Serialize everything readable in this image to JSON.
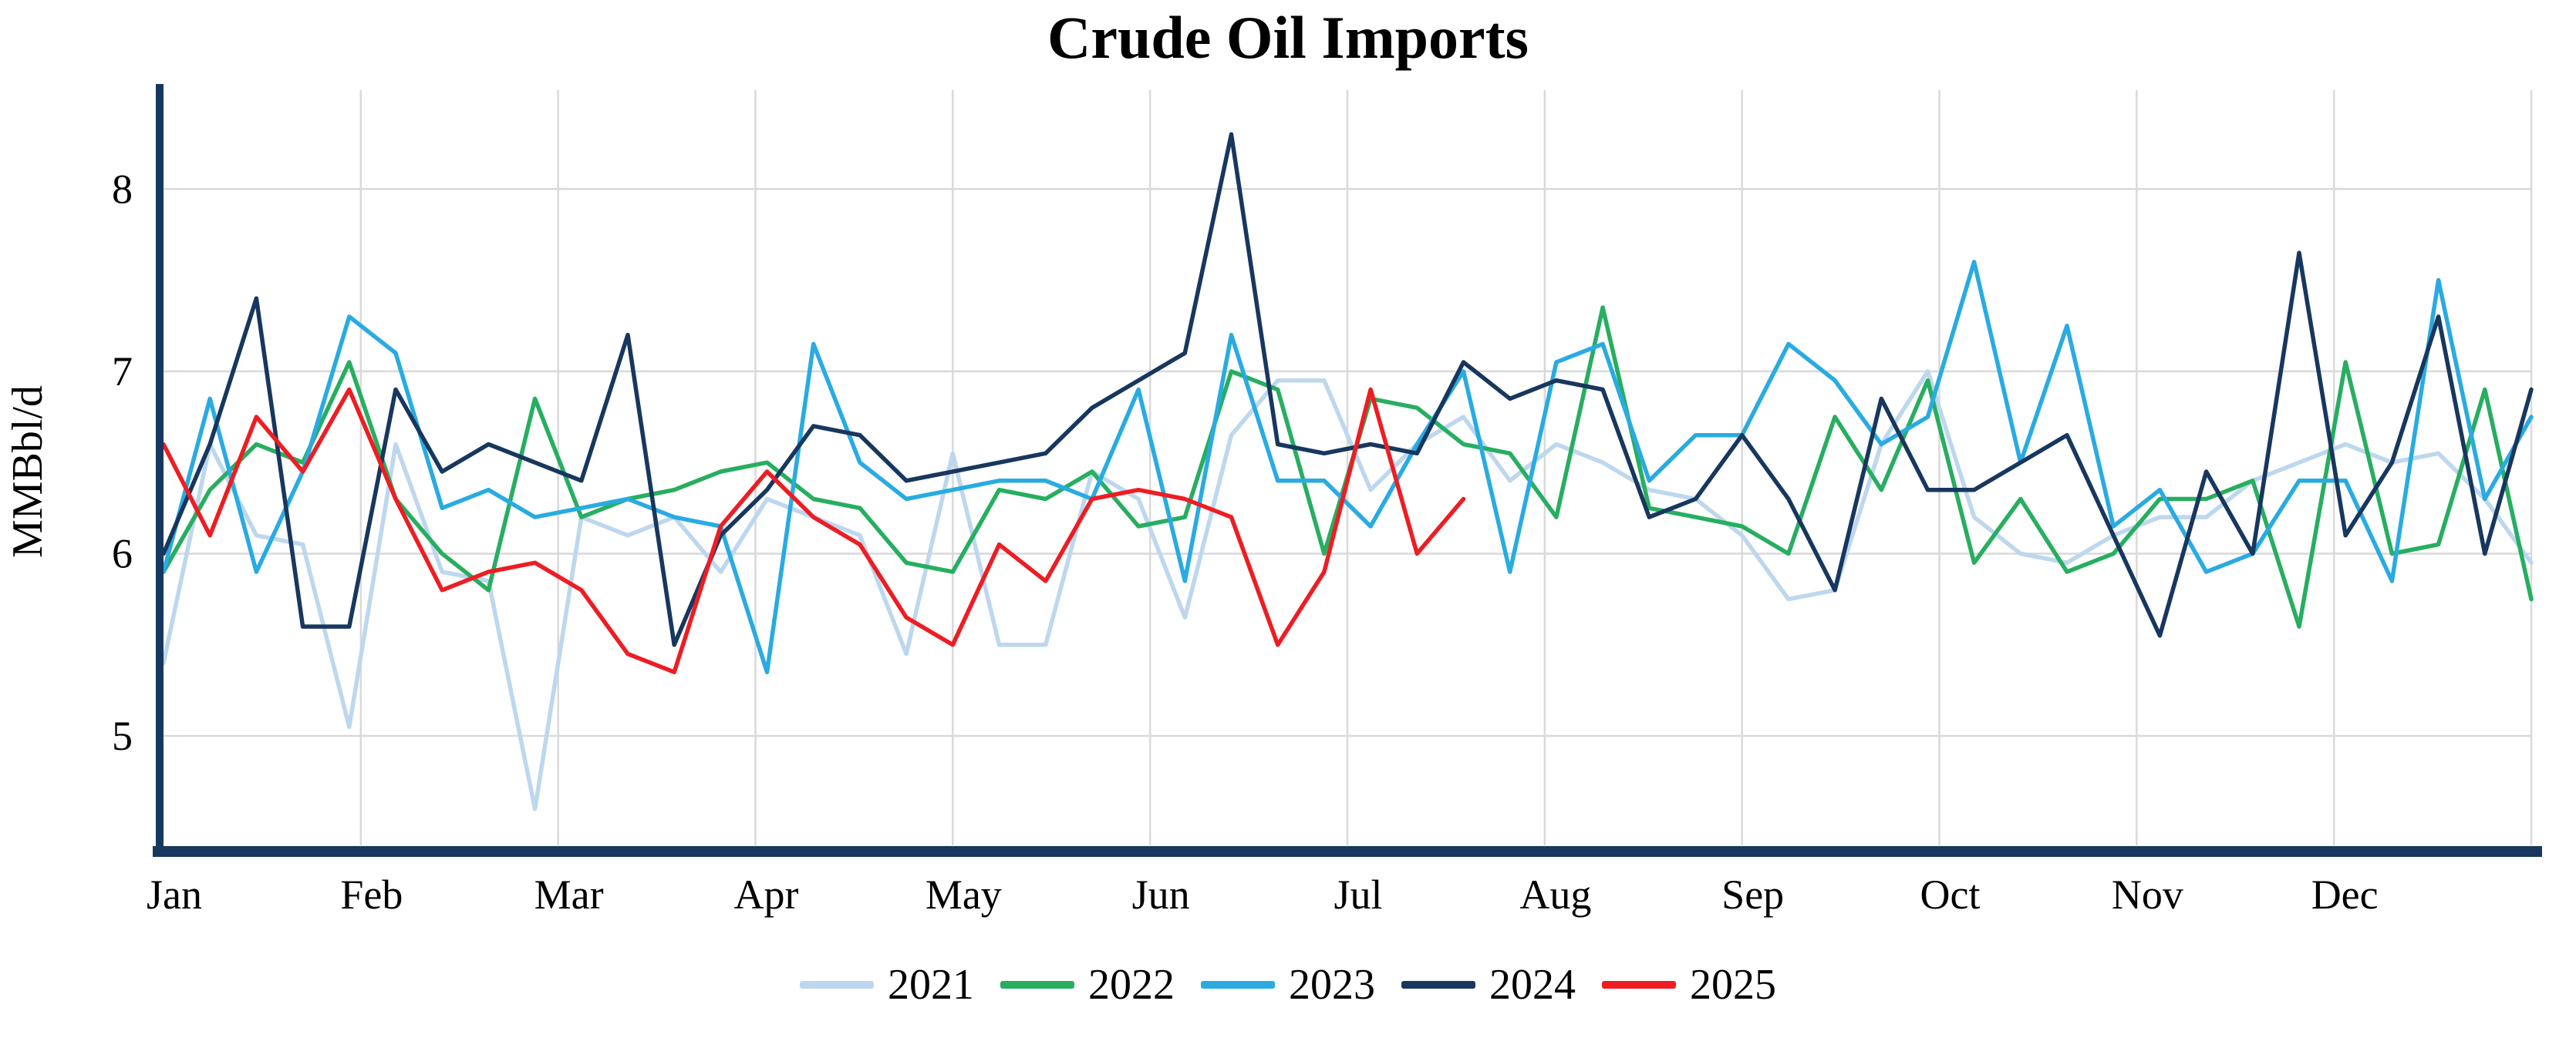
{
  "title": "Crude Oil Imports",
  "ylabel": "MMBbl/d",
  "chart_data": {
    "type": "line",
    "title": "Crude Oil Imports",
    "xlabel": "",
    "ylabel": "MMBbl/d",
    "grid": true,
    "legend_position": "bottom",
    "points_per_year": 52,
    "ylim": [
      4.4,
      8.5
    ],
    "yticks": [
      5,
      6,
      7,
      8
    ],
    "xticklabels": [
      "Jan",
      "Feb",
      "Mar",
      "Apr",
      "May",
      "Jun",
      "Jul",
      "Aug",
      "Sep",
      "Oct",
      "Nov",
      "Dec"
    ],
    "colors": {
      "axis": "#17375e",
      "grid": "#d9d9d9",
      "text": "#000000"
    },
    "series": [
      {
        "name": "2021",
        "color": "#bdd7ee",
        "values": [
          5.4,
          6.6,
          6.1,
          6.05,
          5.05,
          6.6,
          5.9,
          5.85,
          4.6,
          6.2,
          6.1,
          6.2,
          5.9,
          6.3,
          6.2,
          6.1,
          5.45,
          6.55,
          5.5,
          5.5,
          6.45,
          6.3,
          5.65,
          6.65,
          6.95,
          6.95,
          6.35,
          6.6,
          6.75,
          6.4,
          6.6,
          6.5,
          6.35,
          6.3,
          6.1,
          5.75,
          5.8,
          6.6,
          7.0,
          6.2,
          6.0,
          5.95,
          6.1,
          6.2,
          6.2,
          6.4,
          6.5,
          6.6,
          6.5,
          6.55,
          6.3,
          5.95
        ]
      },
      {
        "name": "2022",
        "color": "#27ae60",
        "values": [
          5.9,
          6.35,
          6.6,
          6.5,
          7.05,
          6.3,
          6.0,
          5.8,
          6.85,
          6.2,
          6.3,
          6.35,
          6.45,
          6.5,
          6.3,
          6.25,
          5.95,
          5.9,
          6.35,
          6.3,
          6.45,
          6.15,
          6.2,
          7.0,
          6.9,
          6.0,
          6.85,
          6.8,
          6.6,
          6.55,
          6.2,
          7.35,
          6.25,
          6.2,
          6.15,
          6.0,
          6.75,
          6.35,
          6.95,
          5.95,
          6.3,
          5.9,
          6.0,
          6.3,
          6.3,
          6.4,
          5.6,
          7.05,
          6.0,
          6.05,
          6.9,
          5.75
        ]
      },
      {
        "name": "2023",
        "color": "#29abe2",
        "values": [
          5.9,
          6.85,
          5.9,
          6.45,
          7.3,
          7.1,
          6.25,
          6.35,
          6.2,
          6.25,
          6.3,
          6.2,
          6.15,
          5.35,
          7.15,
          6.5,
          6.3,
          6.35,
          6.4,
          6.4,
          6.3,
          6.9,
          5.85,
          7.2,
          6.4,
          6.4,
          6.15,
          6.6,
          7.0,
          5.9,
          7.05,
          7.15,
          6.4,
          6.65,
          6.65,
          7.15,
          6.95,
          6.6,
          6.75,
          7.6,
          6.5,
          7.25,
          6.15,
          6.35,
          5.9,
          6.0,
          6.4,
          6.4,
          5.85,
          7.5,
          6.3,
          6.75
        ]
      },
      {
        "name": "2024",
        "color": "#17375e",
        "values": [
          6.0,
          6.6,
          7.4,
          5.6,
          5.6,
          6.9,
          6.45,
          6.6,
          6.5,
          6.4,
          7.2,
          5.5,
          6.1,
          6.35,
          6.7,
          6.65,
          6.4,
          6.45,
          6.5,
          6.55,
          6.8,
          6.95,
          7.1,
          8.3,
          6.6,
          6.55,
          6.6,
          6.55,
          7.05,
          6.85,
          6.95,
          6.9,
          6.2,
          6.3,
          6.65,
          6.3,
          5.8,
          6.85,
          6.35,
          6.35,
          6.5,
          6.65,
          6.1,
          5.55,
          6.45,
          6.0,
          7.65,
          6.1,
          6.5,
          7.3,
          6.0,
          6.9
        ]
      },
      {
        "name": "2025",
        "color": "#ee1d23",
        "values": [
          6.6,
          6.1,
          6.75,
          6.45,
          6.9,
          6.3,
          5.8,
          5.9,
          5.95,
          5.8,
          5.45,
          5.35,
          6.15,
          6.45,
          6.2,
          6.05,
          5.65,
          5.5,
          6.05,
          5.85,
          6.3,
          6.35,
          6.3,
          6.2,
          5.5,
          5.9,
          6.9,
          6.0,
          6.3
        ]
      }
    ]
  }
}
